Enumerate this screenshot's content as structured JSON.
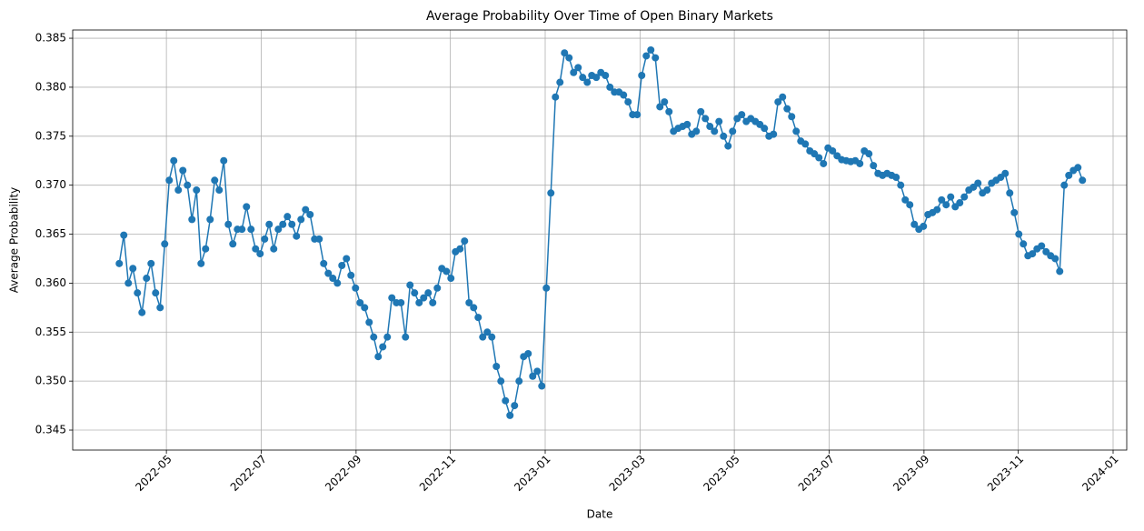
{
  "chart_data": {
    "type": "line",
    "title": "Average Probability Over Time of Open Binary Markets",
    "x_label": "Date",
    "y_label": "Average Probability",
    "color": "#1f77b4",
    "grid": true,
    "xlim": [
      2022.168,
      2024.024
    ],
    "ylim": [
      0.34296,
      0.38584
    ],
    "xticks": [
      {
        "value": 2022.333,
        "label": "2022-05"
      },
      {
        "value": 2022.5,
        "label": "2022-07"
      },
      {
        "value": 2022.667,
        "label": "2022-09"
      },
      {
        "value": 2022.833,
        "label": "2022-11"
      },
      {
        "value": 2023,
        "label": "2023-01"
      },
      {
        "value": 2023.167,
        "label": "2023-03"
      },
      {
        "value": 2023.333,
        "label": "2023-05"
      },
      {
        "value": 2023.5,
        "label": "2023-07"
      },
      {
        "value": 2023.667,
        "label": "2023-09"
      },
      {
        "value": 2023.833,
        "label": "2023-11"
      },
      {
        "value": 2024,
        "label": "2024-01"
      }
    ],
    "yticks": [
      0.345,
      {
        "value": 0.35,
        "label": "0.350"
      },
      0.355,
      {
        "value": 0.36,
        "label": "0.360"
      },
      0.365,
      {
        "value": 0.37,
        "label": "0.370"
      },
      0.375,
      {
        "value": 0.38,
        "label": "0.380"
      },
      0.385
    ],
    "x": [
      2022.25,
      2022.258,
      2022.266,
      2022.274,
      2022.282,
      2022.29,
      2022.298,
      2022.306,
      2022.314,
      2022.322,
      2022.33,
      2022.338,
      2022.346,
      2022.354,
      2022.362,
      2022.37,
      2022.378,
      2022.386,
      2022.394,
      2022.402,
      2022.41,
      2022.418,
      2022.426,
      2022.434,
      2022.442,
      2022.45,
      2022.458,
      2022.466,
      2022.474,
      2022.482,
      2022.49,
      2022.498,
      2022.506,
      2022.514,
      2022.522,
      2022.53,
      2022.538,
      2022.546,
      2022.554,
      2022.562,
      2022.57,
      2022.578,
      2022.586,
      2022.594,
      2022.602,
      2022.61,
      2022.618,
      2022.626,
      2022.634,
      2022.642,
      2022.65,
      2022.658,
      2022.666,
      2022.674,
      2022.682,
      2022.69,
      2022.698,
      2022.706,
      2022.714,
      2022.722,
      2022.73,
      2022.738,
      2022.746,
      2022.754,
      2022.762,
      2022.77,
      2022.778,
      2022.786,
      2022.794,
      2022.802,
      2022.81,
      2022.818,
      2022.826,
      2022.834,
      2022.842,
      2022.85,
      2022.858,
      2022.866,
      2022.874,
      2022.882,
      2022.89,
      2022.898,
      2022.906,
      2022.914,
      2022.922,
      2022.93,
      2022.938,
      2022.946,
      2022.954,
      2022.962,
      2022.97,
      2022.978,
      2022.986,
      2022.994,
      2023.002,
      2023.01,
      2023.018,
      2023.026,
      2023.034,
      2023.042,
      2023.05,
      2023.058,
      2023.066,
      2023.074,
      2023.082,
      2023.09,
      2023.098,
      2023.106,
      2023.114,
      2023.122,
      2023.13,
      2023.138,
      2023.146,
      2023.154,
      2023.162,
      2023.17,
      2023.178,
      2023.186,
      2023.194,
      2023.202,
      2023.21,
      2023.218,
      2023.226,
      2023.234,
      2023.242,
      2023.25,
      2023.258,
      2023.266,
      2023.274,
      2023.282,
      2023.29,
      2023.298,
      2023.306,
      2023.314,
      2023.322,
      2023.33,
      2023.338,
      2023.346,
      2023.354,
      2023.362,
      2023.37,
      2023.378,
      2023.386,
      2023.394,
      2023.402,
      2023.41,
      2023.418,
      2023.426,
      2023.434,
      2023.442,
      2023.45,
      2023.458,
      2023.466,
      2023.474,
      2023.482,
      2023.49,
      2023.498,
      2023.506,
      2023.514,
      2023.522,
      2023.53,
      2023.538,
      2023.546,
      2023.554,
      2023.562,
      2023.57,
      2023.578,
      2023.586,
      2023.594,
      2023.602,
      2023.61,
      2023.618,
      2023.626,
      2023.634,
      2023.642,
      2023.65,
      2023.658,
      2023.666,
      2023.674,
      2023.682,
      2023.69,
      2023.698,
      2023.706,
      2023.714,
      2023.722,
      2023.73,
      2023.738,
      2023.746,
      2023.754,
      2023.762,
      2023.77,
      2023.778,
      2023.786,
      2023.794,
      2023.802,
      2023.81,
      2023.818,
      2023.826,
      2023.834,
      2023.842,
      2023.85,
      2023.858,
      2023.866,
      2023.874,
      2023.882,
      2023.89,
      2023.898,
      2023.906,
      2023.914,
      2023.922,
      2023.93,
      2023.938,
      2023.946
    ],
    "values": [
      0.362,
      0.3649,
      0.36,
      0.3615,
      0.359,
      0.357,
      0.3605,
      0.362,
      0.359,
      0.3575,
      0.364,
      0.3705,
      0.3725,
      0.3695,
      0.3715,
      0.37,
      0.3665,
      0.3695,
      0.362,
      0.3635,
      0.3665,
      0.3705,
      0.3695,
      0.3725,
      0.366,
      0.364,
      0.3655,
      0.3655,
      0.3678,
      0.3655,
      0.3635,
      0.363,
      0.3645,
      0.366,
      0.3635,
      0.3655,
      0.366,
      0.3668,
      0.366,
      0.3648,
      0.3665,
      0.3675,
      0.367,
      0.3645,
      0.3645,
      0.362,
      0.361,
      0.3605,
      0.36,
      0.3618,
      0.3625,
      0.3608,
      0.3595,
      0.358,
      0.3575,
      0.356,
      0.3545,
      0.3525,
      0.3535,
      0.3545,
      0.3585,
      0.358,
      0.358,
      0.3545,
      0.3598,
      0.359,
      0.358,
      0.3585,
      0.359,
      0.358,
      0.3595,
      0.3615,
      0.3612,
      0.3605,
      0.3632,
      0.3635,
      0.3643,
      0.358,
      0.3575,
      0.3565,
      0.3545,
      0.355,
      0.3545,
      0.3515,
      0.35,
      0.348,
      0.3465,
      0.3475,
      0.35,
      0.3525,
      0.3528,
      0.3505,
      0.351,
      0.3495,
      0.3595,
      0.3692,
      0.379,
      0.3805,
      0.3835,
      0.383,
      0.3815,
      0.382,
      0.381,
      0.3805,
      0.3812,
      0.381,
      0.3815,
      0.3812,
      0.38,
      0.3795,
      0.3795,
      0.3792,
      0.3785,
      0.3772,
      0.3772,
      0.3812,
      0.3832,
      0.3838,
      0.383,
      0.378,
      0.3785,
      0.3775,
      0.3755,
      0.3758,
      0.376,
      0.3762,
      0.3752,
      0.3755,
      0.3775,
      0.3768,
      0.376,
      0.3755,
      0.3765,
      0.375,
      0.374,
      0.3755,
      0.3768,
      0.3772,
      0.3765,
      0.3768,
      0.3765,
      0.3762,
      0.3758,
      0.375,
      0.3752,
      0.3785,
      0.379,
      0.3778,
      0.377,
      0.3755,
      0.3745,
      0.3742,
      0.3735,
      0.3732,
      0.3728,
      0.3722,
      0.3738,
      0.3735,
      0.373,
      0.3726,
      0.3725,
      0.3724,
      0.3725,
      0.3722,
      0.3735,
      0.3732,
      0.372,
      0.3712,
      0.371,
      0.3712,
      0.371,
      0.3708,
      0.37,
      0.3685,
      0.368,
      0.366,
      0.3655,
      0.3658,
      0.367,
      0.3672,
      0.3675,
      0.3685,
      0.368,
      0.3688,
      0.3678,
      0.3682,
      0.3688,
      0.3695,
      0.3698,
      0.3702,
      0.3692,
      0.3695,
      0.3702,
      0.3705,
      0.3708,
      0.3712,
      0.3692,
      0.3672,
      0.365,
      0.364,
      0.3628,
      0.363,
      0.3635,
      0.3638,
      0.3632,
      0.3628,
      0.3625,
      0.3612,
      0.37,
      0.371,
      0.3715,
      0.3718,
      0.3705
    ]
  }
}
